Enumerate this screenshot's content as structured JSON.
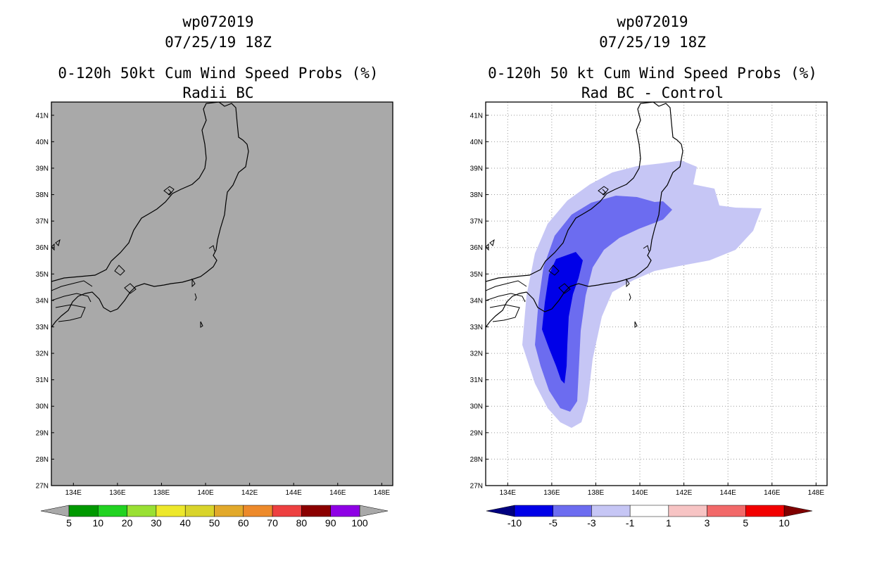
{
  "left_panel": {
    "title_line1": "wp072019",
    "title_line2": "07/25/19 18Z",
    "title_line3": "0-120h 50kt Cum Wind Speed Probs (%)",
    "title_line4": "Radii BC"
  },
  "right_panel": {
    "title_line1": "wp072019",
    "title_line2": "07/25/19 18Z",
    "title_line3": "0-120h 50 kt Cum Wind Speed Probs (%)",
    "title_line4": "Rad BC - Control"
  },
  "colors": {
    "land_gray": "#a9a9a9",
    "light_blue": "#c6c6f5",
    "mid_blue": "#6c6cf0",
    "dark_blue": "#0000e8"
  },
  "chart_data": [
    {
      "type": "map",
      "title": "0-120h 50kt Cum Wind Speed Probs (%) Radii BC",
      "lon_range": [
        133,
        148.5
      ],
      "lat_range": [
        27,
        41.5
      ],
      "x_ticks": [
        "134E",
        "136E",
        "138E",
        "140E",
        "142E",
        "144E",
        "146E",
        "148E"
      ],
      "y_ticks": [
        "27N",
        "28N",
        "29N",
        "30N",
        "31N",
        "32N",
        "33N",
        "34N",
        "35N",
        "36N",
        "37N",
        "38N",
        "39N",
        "40N",
        "41N"
      ],
      "grid": false,
      "colorbar": {
        "labels": [
          "5",
          "10",
          "20",
          "30",
          "40",
          "50",
          "60",
          "70",
          "80",
          "90",
          "100"
        ],
        "colors": [
          "#009900",
          "#21d321",
          "#99e033",
          "#ede82b",
          "#d9d42b",
          "#e2a92b",
          "#ed8a2b",
          "#ed4040",
          "#8b0000",
          "#8e00e5"
        ],
        "end_colors": [
          "#a9a9a9",
          "#a9a9a9"
        ]
      }
    },
    {
      "type": "map",
      "title": "0-120h 50 kt Cum Wind Speed Probs (%) Rad BC - Control",
      "lon_range": [
        133,
        148.5
      ],
      "lat_range": [
        27,
        41.5
      ],
      "x_ticks": [
        "134E",
        "136E",
        "138E",
        "140E",
        "142E",
        "144E",
        "146E",
        "148E"
      ],
      "y_ticks": [
        "27N",
        "28N",
        "29N",
        "30N",
        "31N",
        "32N",
        "33N",
        "34N",
        "35N",
        "36N",
        "37N",
        "38N",
        "39N",
        "40N",
        "41N"
      ],
      "grid": true,
      "colorbar": {
        "labels": [
          "-10",
          "-5",
          "-3",
          "-1",
          "1",
          "3",
          "5",
          "10"
        ],
        "colors": [
          "#0000e8",
          "#6c6cf0",
          "#c6c6f5",
          "#ffffff",
          "#f7c4c4",
          "#f26969",
          "#f20000"
        ],
        "end_colors": [
          "#000080",
          "#800000"
        ]
      }
    }
  ]
}
